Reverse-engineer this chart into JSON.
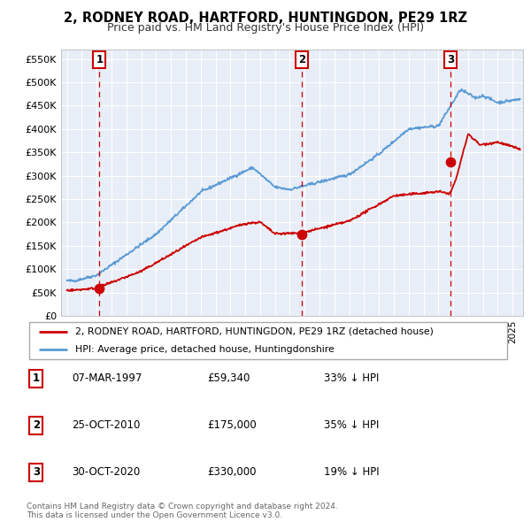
{
  "title": "2, RODNEY ROAD, HARTFORD, HUNTINGDON, PE29 1RZ",
  "subtitle": "Price paid vs. HM Land Registry's House Price Index (HPI)",
  "ylim": [
    0,
    570000
  ],
  "yticks": [
    0,
    50000,
    100000,
    150000,
    200000,
    250000,
    300000,
    350000,
    400000,
    450000,
    500000,
    550000
  ],
  "ytick_labels": [
    "£0",
    "£50K",
    "£100K",
    "£150K",
    "£200K",
    "£250K",
    "£300K",
    "£350K",
    "£400K",
    "£450K",
    "£500K",
    "£550K"
  ],
  "plot_bg_color": "#e8eef7",
  "grid_color": "#ffffff",
  "sale_color": "#cc0000",
  "hpi_color": "#5b9bd5",
  "dashed_line_color": "#cc0000",
  "sale_dates_float": [
    1997.18,
    2010.81,
    2020.83
  ],
  "sale_prices": [
    59340,
    175000,
    330000
  ],
  "sale_labels": [
    "1",
    "2",
    "3"
  ],
  "legend_label_sale": "2, RODNEY ROAD, HARTFORD, HUNTINGDON, PE29 1RZ (detached house)",
  "legend_label_hpi": "HPI: Average price, detached house, Huntingdonshire",
  "table_rows": [
    {
      "num": "1",
      "date": "07-MAR-1997",
      "price": "£59,340",
      "hpi": "33% ↓ HPI"
    },
    {
      "num": "2",
      "date": "25-OCT-2010",
      "price": "£175,000",
      "hpi": "35% ↓ HPI"
    },
    {
      "num": "3",
      "date": "30-OCT-2020",
      "price": "£330,000",
      "hpi": "19% ↓ HPI"
    }
  ],
  "footer": "Contains HM Land Registry data © Crown copyright and database right 2024.\nThis data is licensed under the Open Government Licence v3.0.",
  "title_fontsize": 10.5,
  "subtitle_fontsize": 9
}
